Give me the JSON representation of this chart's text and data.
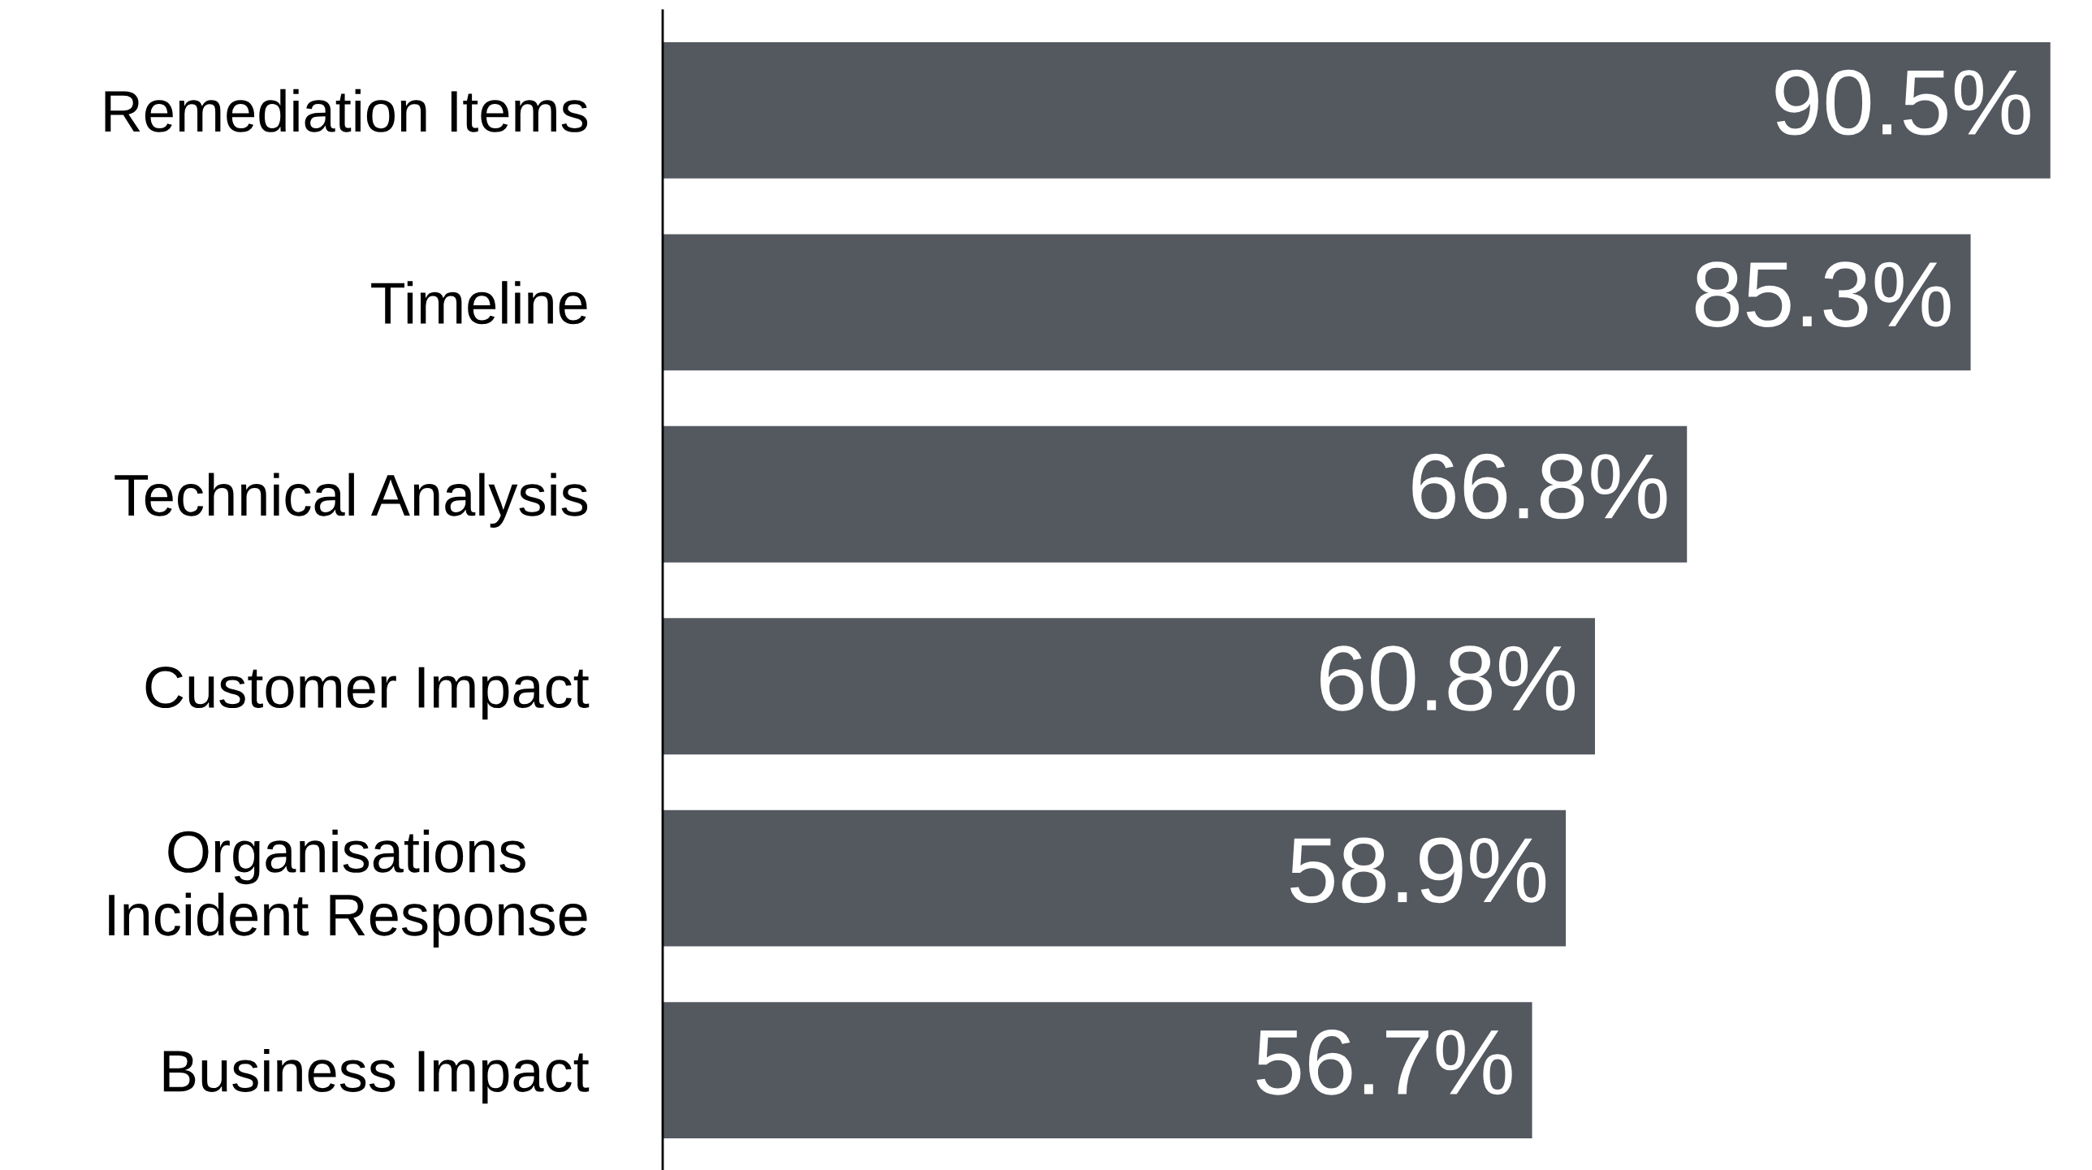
{
  "chart_data": {
    "type": "bar",
    "orientation": "horizontal",
    "categories": [
      "Remediation Items",
      "Timeline",
      "Technical Analysis",
      "Customer Impact",
      "Organisations\nIncident Response",
      "Business Impact"
    ],
    "values": [
      90.5,
      85.3,
      66.8,
      60.8,
      58.9,
      56.7
    ],
    "value_labels": [
      "90.5%",
      "85.3%",
      "66.8%",
      "60.8%",
      "58.9%",
      "56.7%"
    ],
    "color": "#54585f",
    "grid": false,
    "legend": false,
    "tick_labels": "y"
  }
}
